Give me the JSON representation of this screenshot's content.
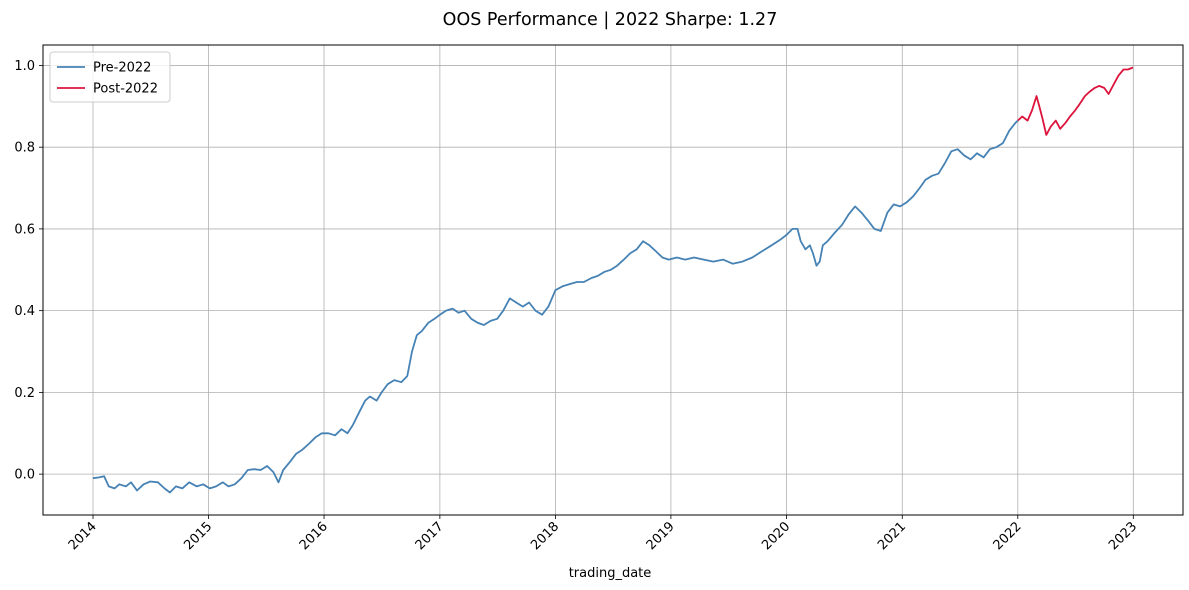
{
  "chart_data": {
    "type": "line",
    "title": "OOS Performance | 2022 Sharpe: 1.27",
    "xlabel": "trading_date",
    "ylabel": "",
    "x_range": [
      "2013-07-27",
      "2023-06-07"
    ],
    "ylim": [
      -0.1,
      1.05
    ],
    "grid": true,
    "legend_placement": "upper-left",
    "x_ticks": [
      "2014",
      "2015",
      "2016",
      "2017",
      "2018",
      "2019",
      "2020",
      "2021",
      "2022",
      "2023"
    ],
    "y_ticks": [
      "0.0",
      "0.2",
      "0.4",
      "0.6",
      "0.8",
      "1.0"
    ],
    "y_tick_values": [
      0.0,
      0.2,
      0.4,
      0.6,
      0.8,
      1.0
    ],
    "series": [
      {
        "name": "Pre-2022",
        "color": "#4682b4",
        "points": [
          [
            "2014-01-01",
            -0.01
          ],
          [
            "2014-01-20",
            -0.008
          ],
          [
            "2014-02-05",
            -0.005
          ],
          [
            "2014-02-20",
            -0.03
          ],
          [
            "2014-03-10",
            -0.035
          ],
          [
            "2014-03-25",
            -0.025
          ],
          [
            "2014-04-15",
            -0.03
          ],
          [
            "2014-05-01",
            -0.02
          ],
          [
            "2014-05-20",
            -0.04
          ],
          [
            "2014-06-10",
            -0.025
          ],
          [
            "2014-07-01",
            -0.018
          ],
          [
            "2014-07-25",
            -0.02
          ],
          [
            "2014-08-15",
            -0.035
          ],
          [
            "2014-09-01",
            -0.045
          ],
          [
            "2014-09-20",
            -0.03
          ],
          [
            "2014-10-10",
            -0.035
          ],
          [
            "2014-11-01",
            -0.02
          ],
          [
            "2014-11-25",
            -0.03
          ],
          [
            "2014-12-15",
            -0.025
          ],
          [
            "2015-01-05",
            -0.035
          ],
          [
            "2015-01-25",
            -0.03
          ],
          [
            "2015-02-15",
            -0.02
          ],
          [
            "2015-03-05",
            -0.03
          ],
          [
            "2015-03-25",
            -0.025
          ],
          [
            "2015-04-15",
            -0.01
          ],
          [
            "2015-05-05",
            0.01
          ],
          [
            "2015-05-25",
            0.012
          ],
          [
            "2015-06-15",
            0.01
          ],
          [
            "2015-07-05",
            0.02
          ],
          [
            "2015-07-25",
            0.005
          ],
          [
            "2015-08-10",
            -0.02
          ],
          [
            "2015-08-25",
            0.01
          ],
          [
            "2015-09-15",
            0.03
          ],
          [
            "2015-10-05",
            0.05
          ],
          [
            "2015-10-25",
            0.06
          ],
          [
            "2015-11-15",
            0.075
          ],
          [
            "2015-12-05",
            0.09
          ],
          [
            "2015-12-25",
            0.1
          ],
          [
            "2016-01-15",
            0.1
          ],
          [
            "2016-02-05",
            0.095
          ],
          [
            "2016-02-25",
            0.11
          ],
          [
            "2016-03-15",
            0.1
          ],
          [
            "2016-04-01",
            0.12
          ],
          [
            "2016-04-20",
            0.15
          ],
          [
            "2016-05-10",
            0.18
          ],
          [
            "2016-05-25",
            0.19
          ],
          [
            "2016-06-15",
            0.18
          ],
          [
            "2016-07-01",
            0.2
          ],
          [
            "2016-07-20",
            0.22
          ],
          [
            "2016-08-10",
            0.23
          ],
          [
            "2016-09-01",
            0.225
          ],
          [
            "2016-09-20",
            0.24
          ],
          [
            "2016-10-05",
            0.3
          ],
          [
            "2016-10-20",
            0.34
          ],
          [
            "2016-11-05",
            0.35
          ],
          [
            "2016-11-25",
            0.37
          ],
          [
            "2016-12-15",
            0.38
          ],
          [
            "2017-01-01",
            0.39
          ],
          [
            "2017-01-20",
            0.4
          ],
          [
            "2017-02-10",
            0.405
          ],
          [
            "2017-03-01",
            0.395
          ],
          [
            "2017-03-20",
            0.4
          ],
          [
            "2017-04-10",
            0.38
          ],
          [
            "2017-05-01",
            0.37
          ],
          [
            "2017-05-20",
            0.365
          ],
          [
            "2017-06-10",
            0.375
          ],
          [
            "2017-07-01",
            0.38
          ],
          [
            "2017-07-20",
            0.4
          ],
          [
            "2017-08-10",
            0.43
          ],
          [
            "2017-08-30",
            0.42
          ],
          [
            "2017-09-20",
            0.41
          ],
          [
            "2017-10-10",
            0.42
          ],
          [
            "2017-10-30",
            0.4
          ],
          [
            "2017-11-20",
            0.39
          ],
          [
            "2017-12-10",
            0.41
          ],
          [
            "2018-01-01",
            0.45
          ],
          [
            "2018-01-25",
            0.46
          ],
          [
            "2018-02-15",
            0.465
          ],
          [
            "2018-03-10",
            0.47
          ],
          [
            "2018-04-01",
            0.47
          ],
          [
            "2018-04-25",
            0.48
          ],
          [
            "2018-05-15",
            0.485
          ],
          [
            "2018-06-05",
            0.495
          ],
          [
            "2018-06-25",
            0.5
          ],
          [
            "2018-07-15",
            0.51
          ],
          [
            "2018-08-05",
            0.525
          ],
          [
            "2018-08-25",
            0.54
          ],
          [
            "2018-09-15",
            0.55
          ],
          [
            "2018-10-05",
            0.57
          ],
          [
            "2018-10-25",
            0.56
          ],
          [
            "2018-11-15",
            0.545
          ],
          [
            "2018-12-05",
            0.53
          ],
          [
            "2018-12-25",
            0.525
          ],
          [
            "2019-01-20",
            0.53
          ],
          [
            "2019-02-15",
            0.525
          ],
          [
            "2019-03-15",
            0.53
          ],
          [
            "2019-04-15",
            0.525
          ],
          [
            "2019-05-15",
            0.52
          ],
          [
            "2019-06-15",
            0.525
          ],
          [
            "2019-07-15",
            0.515
          ],
          [
            "2019-08-15",
            0.52
          ],
          [
            "2019-09-15",
            0.53
          ],
          [
            "2019-10-15",
            0.545
          ],
          [
            "2019-11-15",
            0.56
          ],
          [
            "2019-12-15",
            0.575
          ],
          [
            "2020-01-01",
            0.585
          ],
          [
            "2020-01-20",
            0.6
          ],
          [
            "2020-02-05",
            0.6
          ],
          [
            "2020-02-15",
            0.57
          ],
          [
            "2020-03-01",
            0.55
          ],
          [
            "2020-03-15",
            0.56
          ],
          [
            "2020-03-25",
            0.54
          ],
          [
            "2020-04-05",
            0.51
          ],
          [
            "2020-04-15",
            0.52
          ],
          [
            "2020-04-25",
            0.56
          ],
          [
            "2020-05-10",
            0.57
          ],
          [
            "2020-06-01",
            0.59
          ],
          [
            "2020-06-25",
            0.61
          ],
          [
            "2020-07-15",
            0.635
          ],
          [
            "2020-08-05",
            0.655
          ],
          [
            "2020-08-25",
            0.64
          ],
          [
            "2020-09-15",
            0.62
          ],
          [
            "2020-10-05",
            0.6
          ],
          [
            "2020-10-25",
            0.595
          ],
          [
            "2020-11-15",
            0.64
          ],
          [
            "2020-12-05",
            0.66
          ],
          [
            "2020-12-25",
            0.655
          ],
          [
            "2021-01-15",
            0.665
          ],
          [
            "2021-02-05",
            0.68
          ],
          [
            "2021-02-25",
            0.7
          ],
          [
            "2021-03-15",
            0.72
          ],
          [
            "2021-04-05",
            0.73
          ],
          [
            "2021-04-25",
            0.735
          ],
          [
            "2021-05-15",
            0.76
          ],
          [
            "2021-06-05",
            0.79
          ],
          [
            "2021-06-25",
            0.795
          ],
          [
            "2021-07-15",
            0.78
          ],
          [
            "2021-08-05",
            0.77
          ],
          [
            "2021-08-25",
            0.785
          ],
          [
            "2021-09-15",
            0.775
          ],
          [
            "2021-10-05",
            0.795
          ],
          [
            "2021-10-25",
            0.8
          ],
          [
            "2021-11-15",
            0.81
          ],
          [
            "2021-12-05",
            0.84
          ],
          [
            "2021-12-25",
            0.86
          ],
          [
            "2022-01-01",
            0.865
          ]
        ]
      },
      {
        "name": "Post-2022",
        "color": "#dc143c",
        "points": [
          [
            "2022-01-01",
            0.865
          ],
          [
            "2022-01-15",
            0.875
          ],
          [
            "2022-02-01",
            0.865
          ],
          [
            "2022-02-15",
            0.89
          ],
          [
            "2022-03-01",
            0.925
          ],
          [
            "2022-03-10",
            0.9
          ],
          [
            "2022-03-20",
            0.87
          ],
          [
            "2022-04-01",
            0.83
          ],
          [
            "2022-04-15",
            0.85
          ],
          [
            "2022-05-01",
            0.865
          ],
          [
            "2022-05-15",
            0.845
          ],
          [
            "2022-06-01",
            0.86
          ],
          [
            "2022-06-15",
            0.875
          ],
          [
            "2022-07-01",
            0.89
          ],
          [
            "2022-07-15",
            0.905
          ],
          [
            "2022-08-01",
            0.925
          ],
          [
            "2022-08-15",
            0.935
          ],
          [
            "2022-09-01",
            0.945
          ],
          [
            "2022-09-15",
            0.95
          ],
          [
            "2022-10-01",
            0.945
          ],
          [
            "2022-10-15",
            0.93
          ],
          [
            "2022-11-01",
            0.955
          ],
          [
            "2022-11-15",
            0.975
          ],
          [
            "2022-12-01",
            0.99
          ],
          [
            "2022-12-15",
            0.99
          ],
          [
            "2022-12-31",
            0.995
          ]
        ]
      }
    ]
  }
}
